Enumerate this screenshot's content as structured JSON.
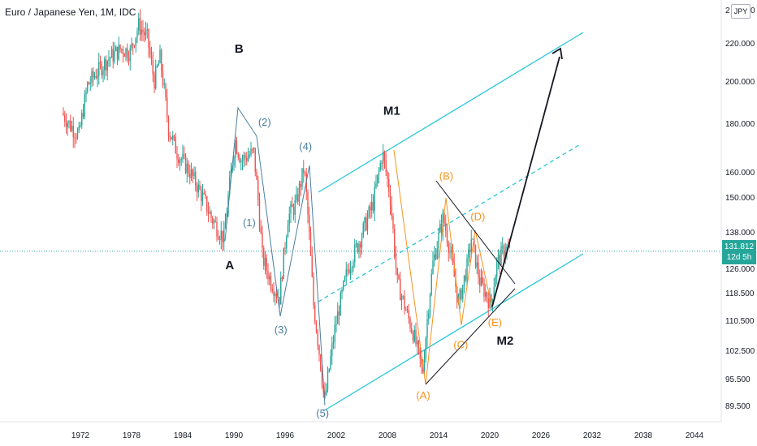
{
  "header": {
    "symbol": "Euro / Japanese Yen",
    "interval": "1M",
    "exchange": "IDC"
  },
  "price_axis": {
    "currency": "JPY",
    "top_partial_label": "2",
    "top_partial_label_right": "0",
    "current_price": "131.812",
    "countdown": "12d 5h",
    "partial_label_under_tag": "126.000"
  },
  "colors": {
    "up": "#26a69a",
    "down": "#ef5350",
    "channel": "#26c6da",
    "wave_primary": "#4a7fa0",
    "wave_secondary": "#f7931e",
    "triangle": "#131722",
    "price_line": "#26a69a"
  },
  "chart_data": {
    "type": "candlestick",
    "x_axis_ticks": [
      "1972",
      "1978",
      "1984",
      "1990",
      "1996",
      "2002",
      "2008",
      "2014",
      "2020",
      "2026",
      "2032",
      "2038",
      "2044"
    ],
    "y_axis_ticks": [
      "220.000",
      "200.000",
      "180.000",
      "160.000",
      "150.000",
      "138.000",
      "118.500",
      "110.500",
      "102.500",
      "95.500",
      "89.500"
    ],
    "xlim": [
      1966,
      2048
    ],
    "ylim_note": "price axis is compressed (log-like) scale, price in JPY",
    "price_path": [
      {
        "x": 1970.0,
        "y": 185
      },
      {
        "x": 1970.8,
        "y": 180
      },
      {
        "x": 1972.0,
        "y": 175
      },
      {
        "x": 1973.0,
        "y": 198
      },
      {
        "x": 1974.0,
        "y": 204
      },
      {
        "x": 1975.5,
        "y": 212
      },
      {
        "x": 1977.0,
        "y": 217
      },
      {
        "x": 1978.0,
        "y": 215
      },
      {
        "x": 1979.0,
        "y": 230
      },
      {
        "x": 1980.0,
        "y": 223
      },
      {
        "x": 1980.8,
        "y": 200
      },
      {
        "x": 1981.5,
        "y": 212
      },
      {
        "x": 1982.5,
        "y": 178
      },
      {
        "x": 1983.5,
        "y": 168
      },
      {
        "x": 1985.0,
        "y": 160
      },
      {
        "x": 1986.5,
        "y": 150
      },
      {
        "x": 1987.5,
        "y": 143
      },
      {
        "x": 1988.5,
        "y": 138
      },
      {
        "x": 1989.0,
        "y": 136
      },
      {
        "x": 1990.3,
        "y": 173
      },
      {
        "x": 1991.0,
        "y": 165
      },
      {
        "x": 1992.5,
        "y": 168
      },
      {
        "x": 1993.5,
        "y": 130
      },
      {
        "x": 1994.5,
        "y": 122
      },
      {
        "x": 1995.5,
        "y": 117
      },
      {
        "x": 1996.5,
        "y": 143
      },
      {
        "x": 1997.5,
        "y": 148
      },
      {
        "x": 1998.4,
        "y": 162
      },
      {
        "x": 1999.5,
        "y": 115
      },
      {
        "x": 2000.8,
        "y": 90
      },
      {
        "x": 2002.0,
        "y": 108
      },
      {
        "x": 2003.5,
        "y": 126
      },
      {
        "x": 2005.0,
        "y": 136
      },
      {
        "x": 2006.5,
        "y": 148
      },
      {
        "x": 2007.6,
        "y": 168
      },
      {
        "x": 2008.5,
        "y": 150
      },
      {
        "x": 2009.3,
        "y": 122
      },
      {
        "x": 2010.5,
        "y": 112
      },
      {
        "x": 2011.2,
        "y": 107
      },
      {
        "x": 2012.3,
        "y": 97
      },
      {
        "x": 2013.5,
        "y": 128
      },
      {
        "x": 2014.7,
        "y": 143
      },
      {
        "x": 2015.5,
        "y": 132
      },
      {
        "x": 2016.5,
        "y": 115
      },
      {
        "x": 2017.5,
        "y": 127
      },
      {
        "x": 2018.0,
        "y": 136
      },
      {
        "x": 2019.0,
        "y": 122
      },
      {
        "x": 2020.3,
        "y": 115
      },
      {
        "x": 2021.0,
        "y": 128
      },
      {
        "x": 2022.0,
        "y": 133
      },
      {
        "x": 2022.5,
        "y": 131.8
      }
    ],
    "current_price": 131.812,
    "annotations": [
      {
        "text": "B",
        "x": 1990.6,
        "y": 215,
        "color": "#131722"
      },
      {
        "text": "A",
        "x": 1989.5,
        "y": 126,
        "color": "#131722"
      },
      {
        "text": "M1",
        "x": 2008.5,
        "y": 184,
        "color": "#131722"
      },
      {
        "text": "M2",
        "x": 2021.8,
        "y": 104,
        "color": "#131722"
      },
      {
        "text": "(1)",
        "x": 1991.8,
        "y": 140,
        "color": "#4a7fa0"
      },
      {
        "text": "(2)",
        "x": 1993.6,
        "y": 179,
        "color": "#4a7fa0"
      },
      {
        "text": "(3)",
        "x": 1995.5,
        "y": 107,
        "color": "#4a7fa0"
      },
      {
        "text": "(4)",
        "x": 1998.4,
        "y": 169,
        "color": "#4a7fa0"
      },
      {
        "text": "(5)",
        "x": 2000.4,
        "y": 87,
        "color": "#4a7fa0"
      },
      {
        "text": "(A)",
        "x": 2012.2,
        "y": 91,
        "color": "#f7931e"
      },
      {
        "text": "(B)",
        "x": 2014.9,
        "y": 157,
        "color": "#f7931e"
      },
      {
        "text": "(C)",
        "x": 2016.6,
        "y": 103,
        "color": "#f7931e"
      },
      {
        "text": "(D)",
        "x": 2018.6,
        "y": 142,
        "color": "#f7931e"
      },
      {
        "text": "(E)",
        "x": 2020.6,
        "y": 109,
        "color": "#f7931e"
      }
    ]
  }
}
